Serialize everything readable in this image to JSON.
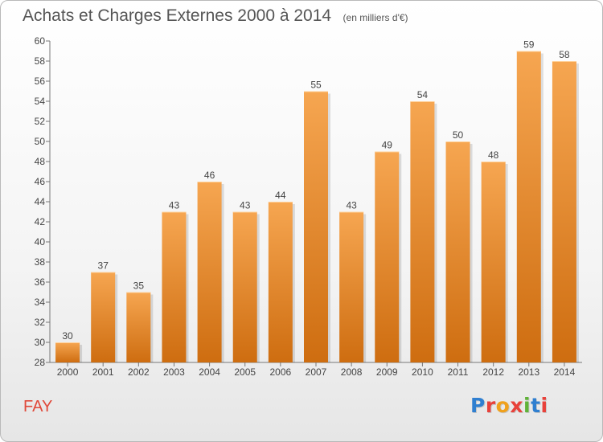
{
  "header": {
    "title": "Achats et Charges Externes 2000 à 2014",
    "unit": "(en milliers d'€)"
  },
  "footer": {
    "commune": "FAY",
    "logo_text": "Proxiti",
    "logo_letter_colors": [
      "#2f7fd0",
      "#e8413a",
      "#f0a11c",
      "#e8413a",
      "#5fb238",
      "#2f7fd0",
      "#e8413a"
    ]
  },
  "colors": {
    "bar_top": "#f6a651",
    "bar_bottom": "#ce6d10",
    "commune": "#e0493a"
  },
  "chart_data": {
    "type": "bar",
    "title": "Achats et Charges Externes 2000 à 2014",
    "subtitle": "(en milliers d'€)",
    "categories": [
      "2000",
      "2001",
      "2002",
      "2003",
      "2004",
      "2005",
      "2006",
      "2007",
      "2008",
      "2009",
      "2010",
      "2011",
      "2012",
      "2013",
      "2014"
    ],
    "values": [
      30,
      37,
      35,
      43,
      46,
      43,
      44,
      55,
      43,
      49,
      54,
      50,
      48,
      59,
      58
    ],
    "ylim": [
      28,
      60
    ],
    "yticks": [
      28,
      30,
      32,
      34,
      36,
      38,
      40,
      42,
      44,
      46,
      48,
      50,
      52,
      54,
      56,
      58,
      60
    ],
    "grid": false,
    "legend": "none",
    "data_labels": true
  }
}
